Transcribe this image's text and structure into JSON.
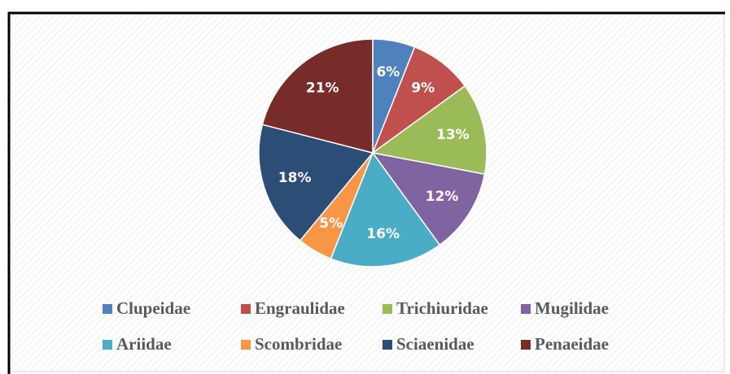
{
  "chart_data": {
    "type": "pie",
    "categories": [
      "Clupeidae",
      "Engraulidae",
      "Trichiuridae",
      "Mugilidae",
      "Ariidae",
      "Scombridae",
      "Sciaenidae",
      "Penaeidae"
    ],
    "values": [
      6,
      9,
      13,
      12,
      16,
      5,
      18,
      21
    ],
    "value_labels": [
      "6%",
      "9%",
      "13%",
      "12%",
      "16%",
      "5%",
      "18%",
      "21%"
    ],
    "colors": [
      "#4f81bd",
      "#c0504d",
      "#9bbb59",
      "#8064a2",
      "#4bacc6",
      "#f79646",
      "#2c4d75",
      "#772c2a"
    ],
    "legend": "bottom"
  }
}
